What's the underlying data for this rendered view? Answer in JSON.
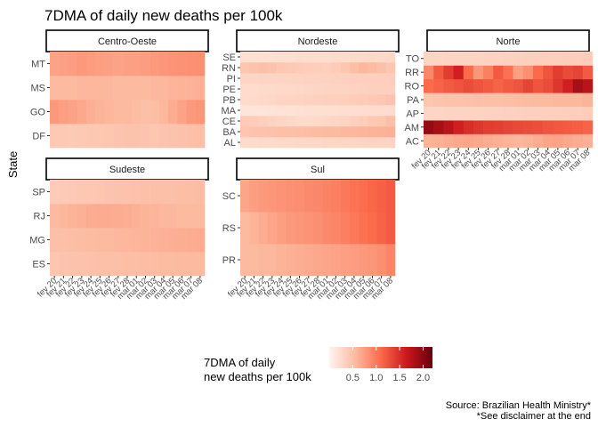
{
  "chart_data": {
    "type": "heatmap",
    "title": "7DMA of daily new deaths per 100k",
    "ylabel": "State",
    "dates": [
      "fev 20",
      "fev 21",
      "fev 22",
      "fev 23",
      "fev 24",
      "fev 25",
      "fev 26",
      "fev 27",
      "fev 28",
      "mar 01",
      "mar 02",
      "mar 03",
      "mar 04",
      "mar 05",
      "mar 06",
      "mar 07",
      "mar 08"
    ],
    "legend": {
      "title_lines": [
        "7DMA of daily",
        "new deaths per 100k"
      ],
      "ticks": [
        "0.5",
        "1.0",
        "1.5",
        "2.0"
      ],
      "range": [
        0,
        2.2
      ],
      "colors": [
        "#fff5f0",
        "#fcbba1",
        "#fb6a4a",
        "#cb181d",
        "#67000d"
      ]
    },
    "caption_lines": [
      "Source: Brazilian Health Ministry*",
      "*See disclaimer at the end"
    ],
    "facets": [
      {
        "name": "Centro-Oeste",
        "states": [
          "DF",
          "GO",
          "MS",
          "MT"
        ],
        "values": [
          [
            0.42,
            0.42,
            0.41,
            0.42,
            0.43,
            0.44,
            0.45,
            0.46,
            0.47,
            0.47,
            0.46,
            0.45,
            0.46,
            0.47,
            0.49,
            0.5,
            0.52
          ],
          [
            0.78,
            0.75,
            0.72,
            0.68,
            0.63,
            0.6,
            0.58,
            0.56,
            0.55,
            0.53,
            0.5,
            0.52,
            0.58,
            0.65,
            0.72,
            0.78,
            0.8
          ],
          [
            0.55,
            0.55,
            0.56,
            0.57,
            0.58,
            0.58,
            0.57,
            0.56,
            0.55,
            0.55,
            0.56,
            0.57,
            0.58,
            0.59,
            0.6,
            0.61,
            0.62
          ],
          [
            0.72,
            0.73,
            0.76,
            0.78,
            0.77,
            0.75,
            0.73,
            0.72,
            0.73,
            0.74,
            0.76,
            0.78,
            0.8,
            0.82,
            0.83,
            0.84,
            0.85
          ]
        ]
      },
      {
        "name": "Nordeste",
        "states": [
          "AL",
          "BA",
          "CE",
          "MA",
          "PB",
          "PE",
          "PI",
          "RN",
          "SE"
        ],
        "values": [
          [
            0.25,
            0.25,
            0.26,
            0.26,
            0.27,
            0.27,
            0.28,
            0.28,
            0.28,
            0.29,
            0.29,
            0.3,
            0.3,
            0.3,
            0.31,
            0.31,
            0.32
          ],
          [
            0.45,
            0.47,
            0.48,
            0.49,
            0.5,
            0.51,
            0.52,
            0.53,
            0.54,
            0.55,
            0.56,
            0.57,
            0.58,
            0.59,
            0.6,
            0.61,
            0.62
          ],
          [
            0.4,
            0.38,
            0.35,
            0.33,
            0.3,
            0.28,
            0.26,
            0.26,
            0.27,
            0.28,
            0.3,
            0.32,
            0.35,
            0.38,
            0.42,
            0.45,
            0.5
          ],
          [
            0.15,
            0.16,
            0.16,
            0.17,
            0.18,
            0.18,
            0.19,
            0.2,
            0.2,
            0.21,
            0.21,
            0.22,
            0.22,
            0.23,
            0.24,
            0.24,
            0.25
          ],
          [
            0.25,
            0.26,
            0.27,
            0.28,
            0.3,
            0.31,
            0.32,
            0.33,
            0.34,
            0.35,
            0.36,
            0.37,
            0.38,
            0.4,
            0.42,
            0.44,
            0.46
          ],
          [
            0.25,
            0.25,
            0.26,
            0.26,
            0.27,
            0.27,
            0.28,
            0.29,
            0.3,
            0.31,
            0.32,
            0.32,
            0.33,
            0.34,
            0.35,
            0.35,
            0.36
          ],
          [
            0.3,
            0.3,
            0.31,
            0.31,
            0.32,
            0.32,
            0.32,
            0.33,
            0.33,
            0.33,
            0.34,
            0.34,
            0.35,
            0.35,
            0.36,
            0.36,
            0.37
          ],
          [
            0.45,
            0.48,
            0.5,
            0.47,
            0.44,
            0.42,
            0.4,
            0.38,
            0.37,
            0.36,
            0.4,
            0.45,
            0.52,
            0.58,
            0.55,
            0.5,
            0.45
          ],
          [
            0.2,
            0.2,
            0.21,
            0.21,
            0.22,
            0.22,
            0.23,
            0.23,
            0.24,
            0.24,
            0.25,
            0.25,
            0.26,
            0.26,
            0.27,
            0.27,
            0.28
          ]
        ]
      },
      {
        "name": "Norte",
        "states": [
          "AC",
          "AM",
          "AP",
          "PA",
          "RO",
          "RR",
          "TO"
        ],
        "values": [
          [
            0.6,
            0.62,
            0.65,
            0.68,
            0.7,
            0.68,
            0.65,
            0.62,
            0.6,
            0.58,
            0.6,
            0.65,
            0.7,
            0.72,
            0.68,
            0.65,
            0.62
          ],
          [
            1.95,
            1.85,
            1.75,
            1.6,
            1.5,
            1.45,
            1.4,
            1.38,
            1.35,
            1.32,
            1.3,
            1.28,
            1.25,
            1.22,
            1.2,
            1.18,
            1.15
          ],
          [
            0.3,
            0.3,
            0.31,
            0.31,
            0.32,
            0.32,
            0.33,
            0.33,
            0.34,
            0.34,
            0.35,
            0.35,
            0.36,
            0.36,
            0.37,
            0.37,
            0.38
          ],
          [
            0.45,
            0.46,
            0.47,
            0.48,
            0.49,
            0.5,
            0.5,
            0.51,
            0.52,
            0.53,
            0.54,
            0.55,
            0.56,
            0.57,
            0.58,
            0.58,
            0.6
          ],
          [
            1.1,
            1.15,
            1.2,
            1.25,
            1.3,
            1.25,
            1.2,
            1.15,
            1.2,
            1.25,
            1.35,
            1.25,
            1.3,
            1.45,
            1.6,
            1.85,
            1.75
          ],
          [
            0.9,
            1.2,
            1.4,
            1.6,
            1.1,
            0.8,
            0.95,
            1.2,
            1.05,
            0.75,
            0.85,
            1.1,
            1.25,
            1.4,
            1.3,
            1.35,
            1.2
          ],
          [
            0.3,
            0.3,
            0.31,
            0.31,
            0.32,
            0.32,
            0.33,
            0.33,
            0.34,
            0.34,
            0.35,
            0.35,
            0.36,
            0.36,
            0.37,
            0.37,
            0.38
          ]
        ]
      },
      {
        "name": "Sudeste",
        "states": [
          "ES",
          "MG",
          "RJ",
          "SP"
        ],
        "values": [
          [
            0.45,
            0.46,
            0.47,
            0.48,
            0.49,
            0.5,
            0.51,
            0.51,
            0.52,
            0.52,
            0.53,
            0.53,
            0.54,
            0.54,
            0.55,
            0.55,
            0.56
          ],
          [
            0.5,
            0.51,
            0.52,
            0.53,
            0.54,
            0.55,
            0.56,
            0.57,
            0.58,
            0.59,
            0.6,
            0.61,
            0.62,
            0.63,
            0.64,
            0.65,
            0.66
          ],
          [
            0.55,
            0.58,
            0.6,
            0.62,
            0.65,
            0.66,
            0.66,
            0.65,
            0.64,
            0.62,
            0.6,
            0.59,
            0.58,
            0.57,
            0.56,
            0.56,
            0.55
          ],
          [
            0.4,
            0.41,
            0.42,
            0.43,
            0.44,
            0.45,
            0.46,
            0.47,
            0.48,
            0.49,
            0.5,
            0.5,
            0.51,
            0.51,
            0.52,
            0.52,
            0.53
          ]
        ]
      },
      {
        "name": "Sul",
        "states": [
          "PR",
          "RS",
          "SC"
        ],
        "values": [
          [
            0.55,
            0.56,
            0.57,
            0.58,
            0.6,
            0.62,
            0.64,
            0.66,
            0.68,
            0.7,
            0.72,
            0.74,
            0.76,
            0.78,
            0.8,
            0.85,
            0.92
          ],
          [
            0.55,
            0.6,
            0.65,
            0.7,
            0.75,
            0.78,
            0.8,
            0.82,
            0.85,
            0.88,
            0.92,
            0.96,
            1.0,
            1.05,
            1.1,
            1.15,
            1.2
          ],
          [
            0.7,
            0.75,
            0.78,
            0.8,
            0.82,
            0.84,
            0.86,
            0.88,
            0.9,
            0.93,
            0.96,
            1.0,
            1.04,
            1.08,
            1.12,
            1.16,
            1.2
          ]
        ]
      }
    ]
  }
}
